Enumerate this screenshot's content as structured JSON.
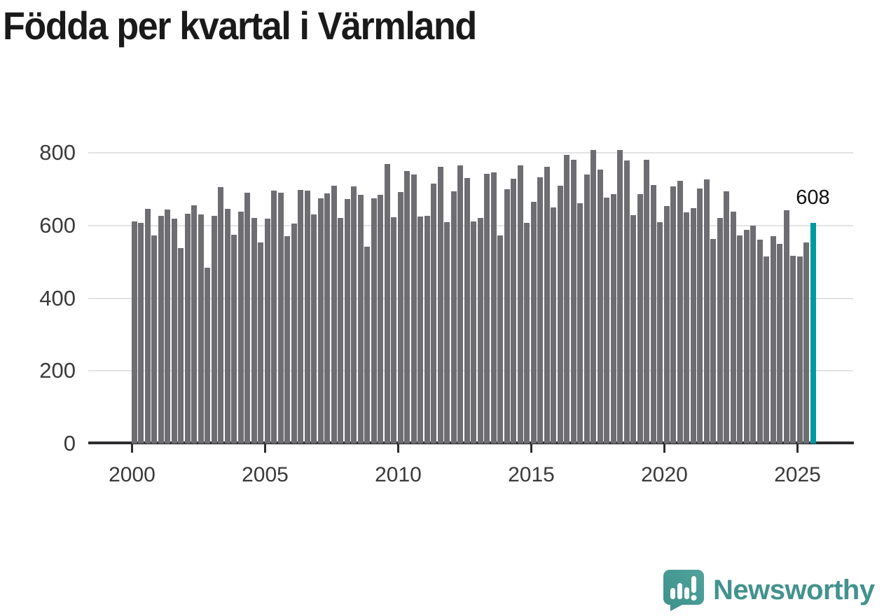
{
  "title": "Födda per kvartal i Värmland",
  "chart_data": {
    "type": "bar",
    "title": "Födda per kvartal i Värmland",
    "x_start": "2000-Q1",
    "x_end": "2025-Q3",
    "frequency": "quarterly",
    "values": [
      612,
      608,
      646,
      573,
      627,
      644,
      619,
      538,
      633,
      656,
      630,
      484,
      627,
      705,
      645,
      574,
      639,
      690,
      620,
      553,
      619,
      695,
      691,
      570,
      605,
      698,
      696,
      630,
      675,
      688,
      710,
      620,
      673,
      708,
      684,
      542,
      675,
      684,
      770,
      622,
      692,
      750,
      740,
      624,
      626,
      715,
      762,
      609,
      694,
      766,
      731,
      612,
      621,
      742,
      746,
      573,
      700,
      728,
      765,
      608,
      665,
      733,
      762,
      650,
      710,
      795,
      780,
      662,
      740,
      808,
      753,
      677,
      687,
      808,
      778,
      628,
      686,
      781,
      712,
      609,
      653,
      707,
      722,
      636,
      647,
      701,
      726,
      562,
      621,
      694,
      639,
      573,
      588,
      600,
      561,
      515,
      571,
      549,
      641,
      516,
      514,
      553,
      608
    ],
    "y_ticks": [
      0,
      200,
      400,
      600,
      800
    ],
    "ylim": [
      0,
      830
    ],
    "x_tick_labels": [
      "2000",
      "2005",
      "2010",
      "2015",
      "2020",
      "2025"
    ],
    "x_tick_indices": [
      0,
      20,
      40,
      60,
      80,
      100
    ],
    "grid": "horizontal",
    "bar_color": "#6e6e72",
    "highlight": {
      "index": 102,
      "label": "608",
      "color": "#0099A0"
    }
  },
  "branding": {
    "name": "Newsworthy",
    "icon": "newsworthy-speech-bubble-bar-chart-icon",
    "color": "#42928D",
    "icon_color": "#47988F"
  }
}
